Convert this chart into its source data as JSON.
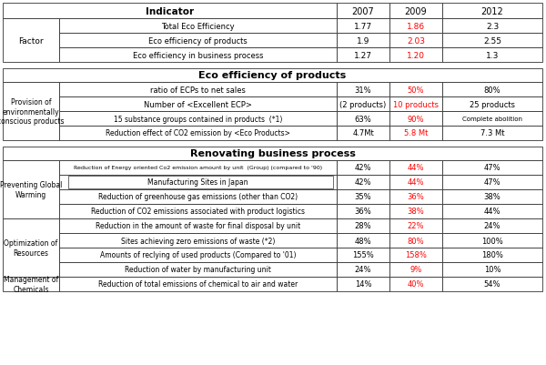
{
  "fig_width": 6.0,
  "fig_height": 4.02,
  "dpi": 100,
  "bg_color": "#ffffff",
  "red_color": "#ff0000",
  "black_color": "#000000",
  "section1_header": "Indicator",
  "section1_years": [
    "2007",
    "2009",
    "2012"
  ],
  "section1_rows": [
    [
      "Total Eco Efficiency",
      "1.77",
      "1.86",
      "2.3"
    ],
    [
      "Eco efficiency of products",
      "1.9",
      "2.03",
      "2.55"
    ],
    [
      "Eco efficiency in business process",
      "1.27",
      "1.20",
      "1.3"
    ]
  ],
  "section2_header": "Eco efficiency of products",
  "section2_left_label": "Provision of\nenvironmentally\nconscious products",
  "section2_rows": [
    [
      "ratio of ECPs to net sales",
      "31%",
      "50%",
      "80%"
    ],
    [
      "Number of <Excellent ECP>",
      "(2 products)",
      "10 products",
      "25 products"
    ],
    [
      "15 substance groups contained in products  (*1)",
      "63%",
      "90%",
      "Complete abolition"
    ],
    [
      "Reduction effect of CO2 emission by <Eco Products>",
      "4.7Mt",
      "5.8 Mt",
      "7.3 Mt"
    ]
  ],
  "section3_header": "Renovating business process",
  "section3_groups": [
    {
      "label": "Preventing Global\nWarming",
      "rows": [
        [
          "Reduction of Energy oriented Co2 emission amount by unit  (Group) (compared to '90)",
          "42%",
          "44%",
          "47%"
        ],
        [
          "Manufacturing Sites in Japan",
          "42%",
          "44%",
          "47%"
        ],
        [
          "Reduction of greenhouse gas emissions (other than CO2)",
          "35%",
          "36%",
          "38%"
        ],
        [
          "Reduction of CO2 emissions associated with product logistics",
          "36%",
          "38%",
          "44%"
        ]
      ],
      "sub_indent": [
        false,
        true,
        false,
        false
      ]
    },
    {
      "label": "Optimization of\nResources",
      "rows": [
        [
          "Reduction in the amount of waste for final disposal by unit",
          "28%",
          "22%",
          "24%"
        ],
        [
          "Sites achieving zero emissions of waste (*2)",
          "48%",
          "80%",
          "100%"
        ],
        [
          "Amounts of reclying of used products (Compared to '01)",
          "155%",
          "158%",
          "180%"
        ],
        [
          "Reduction of water by manufacturing unit",
          "24%",
          "9%",
          "10%"
        ]
      ],
      "sub_indent": [
        false,
        false,
        false,
        false
      ]
    },
    {
      "label": "Management of\nChemicals",
      "rows": [
        [
          "Reduction of total emissions of chemical to air and water",
          "14%",
          "40%",
          "54%"
        ]
      ],
      "sub_indent": [
        false
      ]
    }
  ]
}
